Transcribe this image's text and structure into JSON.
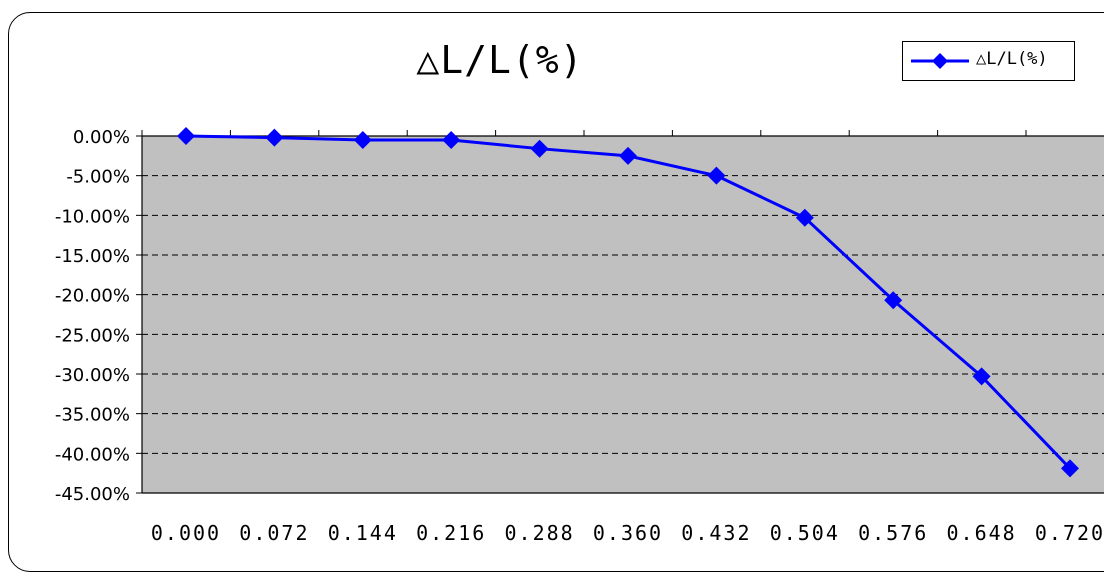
{
  "chart_data": {
    "type": "line",
    "title": "△L/L(%)",
    "legend": {
      "position": "top-right",
      "entries": [
        "△L/L(%)"
      ]
    },
    "series": [
      {
        "name": "△L/L(%)",
        "color": "#0000ff",
        "marker": "diamond",
        "values": [
          0.0,
          -0.2,
          -0.5,
          -0.5,
          -1.6,
          -2.5,
          -5.0,
          -10.3,
          -20.7,
          -30.3,
          -41.9
        ]
      }
    ],
    "categories": [
      "0.000",
      "0.072",
      "0.144",
      "0.216",
      "0.288",
      "0.360",
      "0.432",
      "0.504",
      "0.576",
      "0.648",
      "0.720"
    ],
    "y_ticks": [
      0,
      -5,
      -10,
      -15,
      -20,
      -25,
      -30,
      -35,
      -40,
      -45
    ],
    "y_tick_labels": [
      "0.00%",
      "-5.00%",
      "-10.00%",
      "-15.00%",
      "-20.00%",
      "-25.00%",
      "-30.00%",
      "-35.00%",
      "-40.00%",
      "-45.00%"
    ],
    "ylim": [
      -45,
      0
    ],
    "xlabel": "",
    "ylabel": "",
    "grid": "horizontal dashed",
    "plot_background": "#c0c0c0"
  }
}
